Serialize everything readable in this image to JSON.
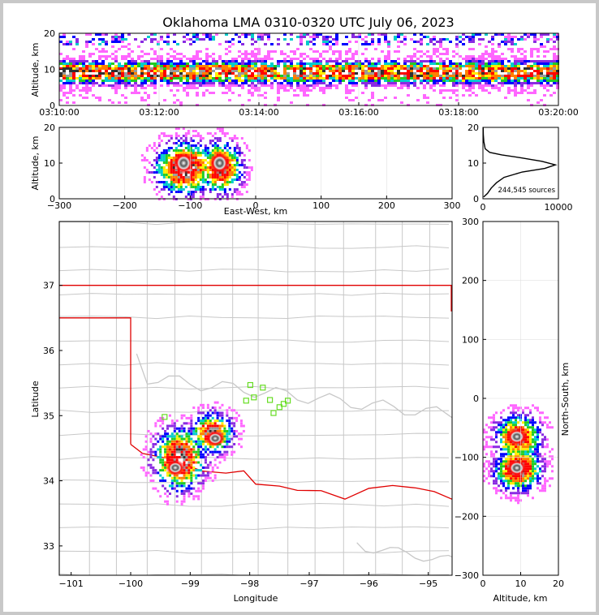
{
  "title": "Oklahoma LMA 0310-0320 UTC July 06, 2023",
  "colors": {
    "state_border": "#e00000",
    "county": "#c8c8c8",
    "station": "#66dd22"
  },
  "chart_data": [
    {
      "id": "time_altitude",
      "type": "heatmap",
      "ylabel": "Altitude, km",
      "x_ticks": [
        "03:10:00",
        "03:12:00",
        "03:14:00",
        "03:16:00",
        "03:18:00",
        "03:20:00"
      ],
      "y_ticks": [
        "0",
        "10",
        "20"
      ],
      "ylim": [
        0,
        20
      ],
      "grid": true
    },
    {
      "id": "eastwest_altitude",
      "type": "heatmap",
      "xlabel": "East-West, km",
      "ylabel": "Altitude, km",
      "x_ticks": [
        "−300",
        "−200",
        "−100",
        "0",
        "100",
        "200",
        "300"
      ],
      "y_ticks": [
        "0",
        "10",
        "20"
      ],
      "xlim": [
        -300,
        300
      ],
      "ylim": [
        0,
        20
      ],
      "cores": [
        {
          "x": -110,
          "y": 10
        },
        {
          "x": -55,
          "y": 10
        }
      ],
      "grid": true
    },
    {
      "id": "altitude_histogram",
      "type": "line",
      "annotation": "244,545 sources",
      "x_ticks": [
        "0",
        "10000"
      ],
      "y_ticks": [
        "0",
        "10",
        "20"
      ],
      "xlim": [
        0,
        10000
      ],
      "ylim": [
        0,
        20
      ],
      "points": [
        {
          "count": 100,
          "alt": 0.5
        },
        {
          "count": 600,
          "alt": 1.5
        },
        {
          "count": 1100,
          "alt": 3
        },
        {
          "count": 1800,
          "alt": 4.5
        },
        {
          "count": 2800,
          "alt": 6
        },
        {
          "count": 5200,
          "alt": 7.5
        },
        {
          "count": 8200,
          "alt": 8.5
        },
        {
          "count": 9600,
          "alt": 9.5
        },
        {
          "count": 7800,
          "alt": 10.5
        },
        {
          "count": 5000,
          "alt": 11.5
        },
        {
          "count": 2500,
          "alt": 12.3
        },
        {
          "count": 900,
          "alt": 13
        },
        {
          "count": 300,
          "alt": 14
        },
        {
          "count": 120,
          "alt": 16
        },
        {
          "count": 50,
          "alt": 18
        },
        {
          "count": 30,
          "alt": 20
        }
      ]
    },
    {
      "id": "plan_view",
      "type": "heatmap",
      "xlabel": "Longitude",
      "ylabel": "Latitude",
      "x_ticks": [
        "−101",
        "−100",
        "−99",
        "−98",
        "−97",
        "−96",
        "−95"
      ],
      "y_ticks": [
        "33",
        "34",
        "35",
        "36",
        "37"
      ],
      "xlim": [
        -101.2,
        -94.6
      ],
      "ylim": [
        32.55,
        37.98
      ],
      "cores": [
        {
          "lon": -99.25,
          "lat": 34.2
        },
        {
          "lon": -98.58,
          "lat": 34.65
        }
      ],
      "stations": [
        {
          "lon": -99.43,
          "lat": 34.98
        },
        {
          "lon": -97.99,
          "lat": 35.47
        },
        {
          "lon": -97.93,
          "lat": 35.28
        },
        {
          "lon": -97.78,
          "lat": 35.43
        },
        {
          "lon": -98.06,
          "lat": 35.23
        },
        {
          "lon": -97.66,
          "lat": 35.24
        },
        {
          "lon": -97.5,
          "lat": 35.13
        },
        {
          "lon": -97.43,
          "lat": 35.18
        },
        {
          "lon": -97.36,
          "lat": 35.23
        },
        {
          "lon": -97.6,
          "lat": 35.04
        }
      ]
    },
    {
      "id": "altitude_northsouth",
      "type": "heatmap",
      "xlabel": "Altitude, km",
      "ylabel": "North-South, km",
      "x_ticks": [
        "0",
        "10",
        "20"
      ],
      "y_ticks": [
        "−300",
        "−200",
        "−100",
        "0",
        "100",
        "200",
        "300"
      ],
      "xlim": [
        0,
        20
      ],
      "ylim": [
        -300,
        300
      ],
      "cores": [
        {
          "alt": 9,
          "y": -65
        },
        {
          "alt": 9,
          "y": -118
        }
      ]
    }
  ]
}
